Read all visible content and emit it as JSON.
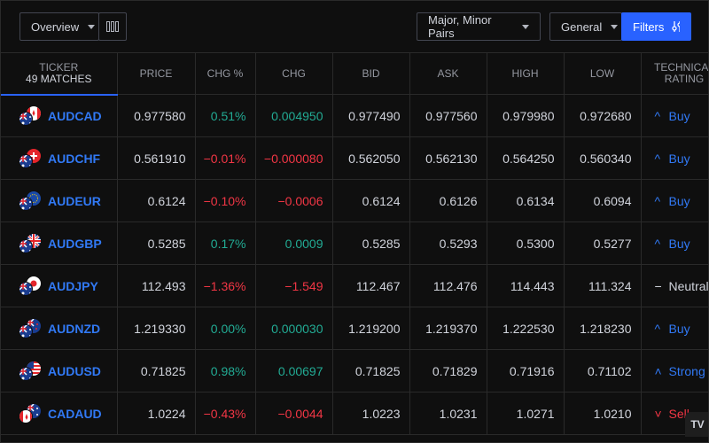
{
  "toolbar": {
    "view": "Overview",
    "pairs": "Major, Minor Pairs",
    "general": "General",
    "filters": "Filters"
  },
  "columns": {
    "ticker": "TICKER",
    "matches": "49 MATCHES",
    "price": "PRICE",
    "chg_pct": "CHG %",
    "chg": "CHG",
    "bid": "BID",
    "ask": "ASK",
    "high": "HIGH",
    "low": "LOW",
    "rating_1": "TECHNICAL",
    "rating_2": "RATING"
  },
  "rows": [
    {
      "ticker": "AUDCAD",
      "price": "0.977580",
      "chg_pct": "0.51%",
      "chg": "0.004950",
      "bid": "0.977490",
      "ask": "0.977560",
      "high": "0.979980",
      "low": "0.972680",
      "rating": "Buy",
      "rating_icon": "^",
      "dir": "pos",
      "rclass": "buy",
      "flags": [
        "au",
        "ca"
      ]
    },
    {
      "ticker": "AUDCHF",
      "price": "0.561910",
      "chg_pct": "−0.01%",
      "chg": "−0.000080",
      "bid": "0.562050",
      "ask": "0.562130",
      "high": "0.564250",
      "low": "0.560340",
      "rating": "Buy",
      "rating_icon": "^",
      "dir": "neg",
      "rclass": "buy",
      "flags": [
        "au",
        "ch"
      ]
    },
    {
      "ticker": "AUDEUR",
      "price": "0.6124",
      "chg_pct": "−0.10%",
      "chg": "−0.0006",
      "bid": "0.6124",
      "ask": "0.6126",
      "high": "0.6134",
      "low": "0.6094",
      "rating": "Buy",
      "rating_icon": "^",
      "dir": "neg",
      "rclass": "buy",
      "flags": [
        "au",
        "eu"
      ]
    },
    {
      "ticker": "AUDGBP",
      "price": "0.5285",
      "chg_pct": "0.17%",
      "chg": "0.0009",
      "bid": "0.5285",
      "ask": "0.5293",
      "high": "0.5300",
      "low": "0.5277",
      "rating": "Buy",
      "rating_icon": "^",
      "dir": "pos",
      "rclass": "buy",
      "flags": [
        "au",
        "gb"
      ]
    },
    {
      "ticker": "AUDJPY",
      "price": "112.493",
      "chg_pct": "−1.36%",
      "chg": "−1.549",
      "bid": "112.467",
      "ask": "112.476",
      "high": "114.443",
      "low": "111.324",
      "rating": "Neutral",
      "rating_icon": "−",
      "dir": "neg",
      "rclass": "neutral",
      "flags": [
        "au",
        "jp"
      ]
    },
    {
      "ticker": "AUDNZD",
      "price": "1.219330",
      "chg_pct": "0.00%",
      "chg": "0.000030",
      "bid": "1.219200",
      "ask": "1.219370",
      "high": "1.222530",
      "low": "1.218230",
      "rating": "Buy",
      "rating_icon": "^",
      "dir": "pos",
      "rclass": "buy",
      "flags": [
        "au",
        "nz"
      ]
    },
    {
      "ticker": "AUDUSD",
      "price": "0.71825",
      "chg_pct": "0.98%",
      "chg": "0.00697",
      "bid": "0.71825",
      "ask": "0.71829",
      "high": "0.71916",
      "low": "0.71102",
      "rating": "Strong",
      "rating_icon": "˄",
      "dir": "pos",
      "rclass": "buy",
      "flags": [
        "au",
        "us"
      ]
    },
    {
      "ticker": "CADAUD",
      "price": "1.0224",
      "chg_pct": "−0.43%",
      "chg": "−0.0044",
      "bid": "1.0223",
      "ask": "1.0231",
      "high": "1.0271",
      "low": "1.0210",
      "rating": "Sell",
      "rating_icon": "˅",
      "dir": "neg",
      "rclass": "sell",
      "flags": [
        "ca",
        "au"
      ]
    }
  ],
  "colors": {
    "accent": "#2962ff",
    "positive": "#22ab94",
    "negative": "#f23645"
  },
  "icons": {
    "columns": "columns-icon",
    "filters": "sliders-icon",
    "logo": "tradingview-logo-icon"
  }
}
